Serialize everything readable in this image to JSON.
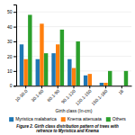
{
  "chart_data": {
    "type": "bar",
    "title": "Figure 2. Girth class distribution pattern of trees with\nrefrence to Myristica and Knema",
    "xlabel": "Girth class (In-cm)",
    "categories": [
      "10-30.0",
      "30.1-60",
      "60.1-90",
      "90.1-120",
      "120.1-150",
      "150.1-180",
      "18"
    ],
    "series": [
      {
        "name": "Myristica malabarica",
        "values": [
          28,
          18,
          22,
          18,
          7,
          2,
          0
        ]
      },
      {
        "name": "Knema attenuata",
        "values": [
          18,
          42,
          28,
          12,
          8,
          2,
          0
        ]
      },
      {
        "name": "Others",
        "values": [
          48,
          22,
          38,
          30,
          0,
          10,
          10
        ]
      }
    ],
    "ylim": [
      0,
      55
    ],
    "yticks": [
      0,
      10,
      20,
      30,
      40,
      50
    ],
    "grid": true,
    "legend": "bottom"
  }
}
